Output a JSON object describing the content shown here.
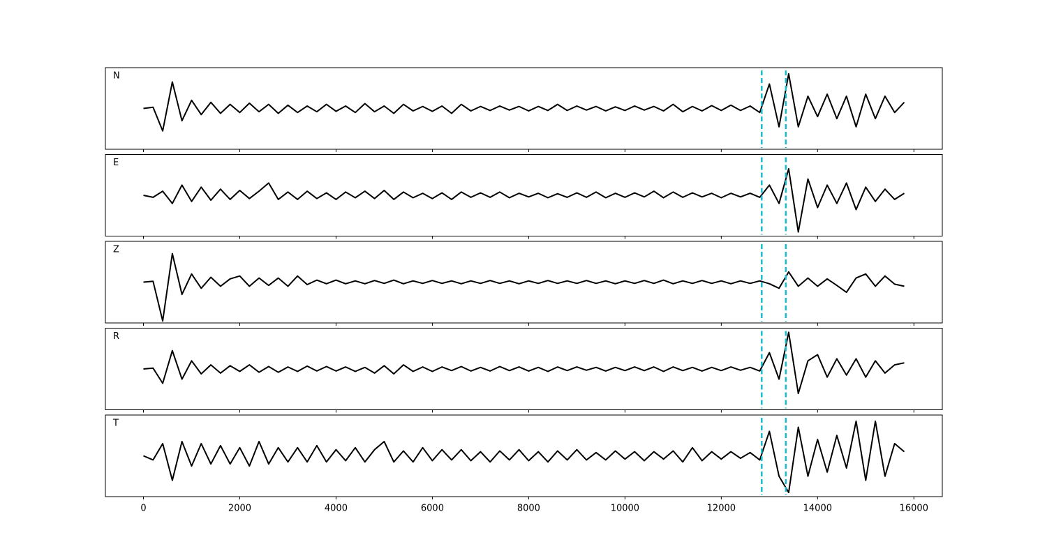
{
  "chart_data": {
    "type": "line",
    "x": [
      0,
      200,
      400,
      600,
      800,
      1000,
      1200,
      1400,
      1600,
      1800,
      2000,
      2200,
      2400,
      2600,
      2800,
      3000,
      3200,
      3400,
      3600,
      3800,
      4000,
      4200,
      4400,
      4600,
      4800,
      5000,
      5200,
      5400,
      5600,
      5800,
      6000,
      6200,
      6400,
      6600,
      6800,
      7000,
      7200,
      7400,
      7600,
      7800,
      8000,
      8200,
      8400,
      8600,
      8800,
      9000,
      9200,
      9400,
      9600,
      9800,
      10000,
      10200,
      10400,
      10600,
      10800,
      11000,
      11200,
      11400,
      11600,
      11800,
      12000,
      12200,
      12400,
      12600,
      12800,
      13000,
      13200,
      13400,
      13600,
      13800,
      14000,
      14200,
      14400,
      14600,
      14800,
      15000,
      15200,
      15400,
      15600,
      15800
    ],
    "xlim": [
      -790,
      16590
    ],
    "xticks": [
      0,
      2000,
      4000,
      6000,
      8000,
      10000,
      12000,
      14000,
      16000
    ],
    "ylim": [
      -1,
      1
    ],
    "line_color": "#000000",
    "series": [
      {
        "name": "N",
        "values": [
          0,
          0.03,
          -0.55,
          0.65,
          -0.3,
          0.2,
          -0.15,
          0.15,
          -0.12,
          0.1,
          -0.1,
          0.13,
          -0.08,
          0.1,
          -0.12,
          0.08,
          -0.1,
          0.06,
          -0.08,
          0.1,
          -0.07,
          0.06,
          -0.1,
          0.12,
          -0.08,
          0.06,
          -0.12,
          0.1,
          -0.06,
          0.05,
          -0.07,
          0.06,
          -0.12,
          0.1,
          -0.06,
          0.05,
          -0.05,
          0.06,
          -0.04,
          0.05,
          -0.06,
          0.05,
          -0.05,
          0.1,
          -0.05,
          0.06,
          -0.04,
          0.05,
          -0.06,
          0.04,
          -0.05,
          0.06,
          -0.04,
          0.05,
          -0.06,
          0.1,
          -0.08,
          0.05,
          -0.06,
          0.07,
          -0.05,
          0.08,
          -0.05,
          0.06,
          -0.1,
          0.6,
          -0.45,
          0.85,
          -0.45,
          0.3,
          -0.2,
          0.35,
          -0.25,
          0.3,
          -0.45,
          0.35,
          -0.25,
          0.3,
          -0.1,
          0.15
        ]
      },
      {
        "name": "E",
        "values": [
          0,
          -0.05,
          0.1,
          -0.2,
          0.25,
          -0.15,
          0.2,
          -0.12,
          0.15,
          -0.1,
          0.12,
          -0.08,
          0.1,
          0.3,
          -0.1,
          0.08,
          -0.1,
          0.1,
          -0.08,
          0.06,
          -0.1,
          0.08,
          -0.06,
          0.1,
          -0.08,
          0.12,
          -0.1,
          0.08,
          -0.06,
          0.05,
          -0.08,
          0.06,
          -0.1,
          0.08,
          -0.05,
          0.06,
          -0.05,
          0.08,
          -0.06,
          0.05,
          -0.04,
          0.05,
          -0.06,
          0.04,
          -0.05,
          0.06,
          -0.05,
          0.08,
          -0.06,
          0.05,
          -0.05,
          0.06,
          -0.04,
          0.1,
          -0.06,
          0.08,
          -0.05,
          0.06,
          -0.04,
          0.05,
          -0.06,
          0.05,
          -0.04,
          0.05,
          -0.05,
          0.25,
          -0.2,
          0.65,
          -0.9,
          0.4,
          -0.3,
          0.25,
          -0.2,
          0.3,
          -0.35,
          0.2,
          -0.15,
          0.15,
          -0.1,
          0.05
        ]
      },
      {
        "name": "Z",
        "values": [
          0,
          0.02,
          -0.95,
          0.7,
          -0.3,
          0.2,
          -0.15,
          0.12,
          -0.1,
          0.08,
          0.15,
          -0.1,
          0.1,
          -0.08,
          0.1,
          -0.1,
          0.15,
          -0.06,
          0.05,
          -0.04,
          0.05,
          -0.04,
          0.03,
          -0.04,
          0.04,
          -0.03,
          0.05,
          -0.04,
          0.03,
          -0.03,
          0.04,
          -0.03,
          0.03,
          -0.04,
          0.03,
          -0.03,
          0.04,
          -0.03,
          0.03,
          -0.04,
          0.03,
          -0.03,
          0.04,
          -0.03,
          0.03,
          -0.03,
          0.04,
          -0.03,
          0.03,
          -0.04,
          0.03,
          -0.03,
          0.04,
          -0.03,
          0.05,
          -0.04,
          0.03,
          -0.03,
          0.04,
          -0.03,
          0.03,
          -0.04,
          0.03,
          -0.03,
          0.03,
          -0.04,
          -0.15,
          0.25,
          -0.1,
          0.1,
          -0.1,
          0.08,
          -0.08,
          -0.25,
          0.1,
          0.2,
          -0.1,
          0.15,
          -0.05,
          -0.1
        ]
      },
      {
        "name": "R",
        "values": [
          0,
          0.02,
          -0.35,
          0.45,
          -0.25,
          0.2,
          -0.12,
          0.1,
          -0.1,
          0.08,
          -0.06,
          0.1,
          -0.08,
          0.06,
          -0.08,
          0.05,
          -0.06,
          0.07,
          -0.05,
          0.06,
          -0.05,
          0.05,
          -0.06,
          0.04,
          -0.1,
          0.08,
          -0.12,
          0.1,
          -0.06,
          0.05,
          -0.06,
          0.05,
          -0.04,
          0.06,
          -0.05,
          0.04,
          -0.05,
          0.06,
          -0.04,
          0.05,
          -0.05,
          0.04,
          -0.06,
          0.05,
          -0.04,
          0.05,
          -0.03,
          0.04,
          -0.05,
          0.04,
          -0.04,
          0.05,
          -0.04,
          0.05,
          -0.06,
          0.05,
          -0.04,
          0.04,
          -0.05,
          0.04,
          -0.04,
          0.05,
          -0.03,
          0.04,
          -0.05,
          0.4,
          -0.25,
          0.9,
          -0.6,
          0.2,
          0.35,
          -0.2,
          0.25,
          -0.15,
          0.25,
          -0.2,
          0.2,
          -0.1,
          0.1,
          0.15
        ]
      },
      {
        "name": "T",
        "values": [
          0,
          -0.1,
          0.3,
          -0.6,
          0.35,
          -0.25,
          0.3,
          -0.2,
          0.25,
          -0.2,
          0.2,
          -0.25,
          0.35,
          -0.2,
          0.2,
          -0.15,
          0.2,
          -0.15,
          0.25,
          -0.15,
          0.15,
          -0.12,
          0.2,
          -0.15,
          0.15,
          0.35,
          -0.15,
          0.12,
          -0.15,
          0.2,
          -0.12,
          0.15,
          -0.1,
          0.15,
          -0.12,
          0.1,
          -0.15,
          0.12,
          -0.1,
          0.15,
          -0.12,
          0.1,
          -0.15,
          0.12,
          -0.1,
          0.15,
          -0.1,
          0.08,
          -0.1,
          0.12,
          -0.08,
          0.1,
          -0.12,
          0.1,
          -0.08,
          0.12,
          -0.15,
          0.2,
          -0.12,
          0.1,
          -0.08,
          0.1,
          -0.06,
          0.08,
          -0.1,
          0.6,
          -0.5,
          -0.9,
          0.7,
          -0.5,
          0.4,
          -0.4,
          0.5,
          -0.3,
          0.85,
          -0.6,
          0.85,
          -0.5,
          0.3,
          0.1
        ]
      }
    ],
    "vlines": {
      "values": [
        12840,
        13340
      ],
      "color": "#17becf"
    }
  }
}
